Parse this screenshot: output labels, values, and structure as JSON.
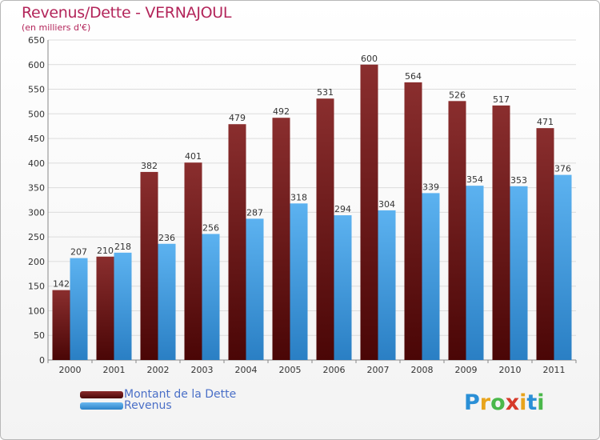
{
  "chart_data": {
    "type": "bar",
    "title": "Revenus/Dette - VERNAJOUL",
    "subtitle": "(en milliers d'€)",
    "categories": [
      "2000",
      "2001",
      "2002",
      "2003",
      "2004",
      "2005",
      "2006",
      "2007",
      "2008",
      "2009",
      "2010",
      "2011"
    ],
    "series": [
      {
        "name": "Montant de la Dette",
        "color": "#7a1a1a",
        "values": [
          142,
          210,
          382,
          401,
          479,
          492,
          531,
          600,
          564,
          526,
          517,
          471
        ]
      },
      {
        "name": "Revenus",
        "color": "#4aa3e8",
        "values": [
          207,
          218,
          236,
          256,
          287,
          318,
          294,
          304,
          339,
          354,
          353,
          376
        ]
      }
    ],
    "ylim": [
      0,
      650
    ],
    "yticks": [
      0,
      50,
      100,
      150,
      200,
      250,
      300,
      350,
      400,
      450,
      500,
      550,
      600,
      650
    ],
    "grid": true,
    "legend_position": "bottom-left"
  },
  "logo": {
    "letters": [
      "P",
      "r",
      "o",
      "x",
      "i",
      "t",
      "i"
    ],
    "colors": [
      "#2a8fd6",
      "#e8a41c",
      "#4ab84a",
      "#d63a2a",
      "#e8a41c",
      "#2a8fd6",
      "#4ab84a"
    ]
  }
}
